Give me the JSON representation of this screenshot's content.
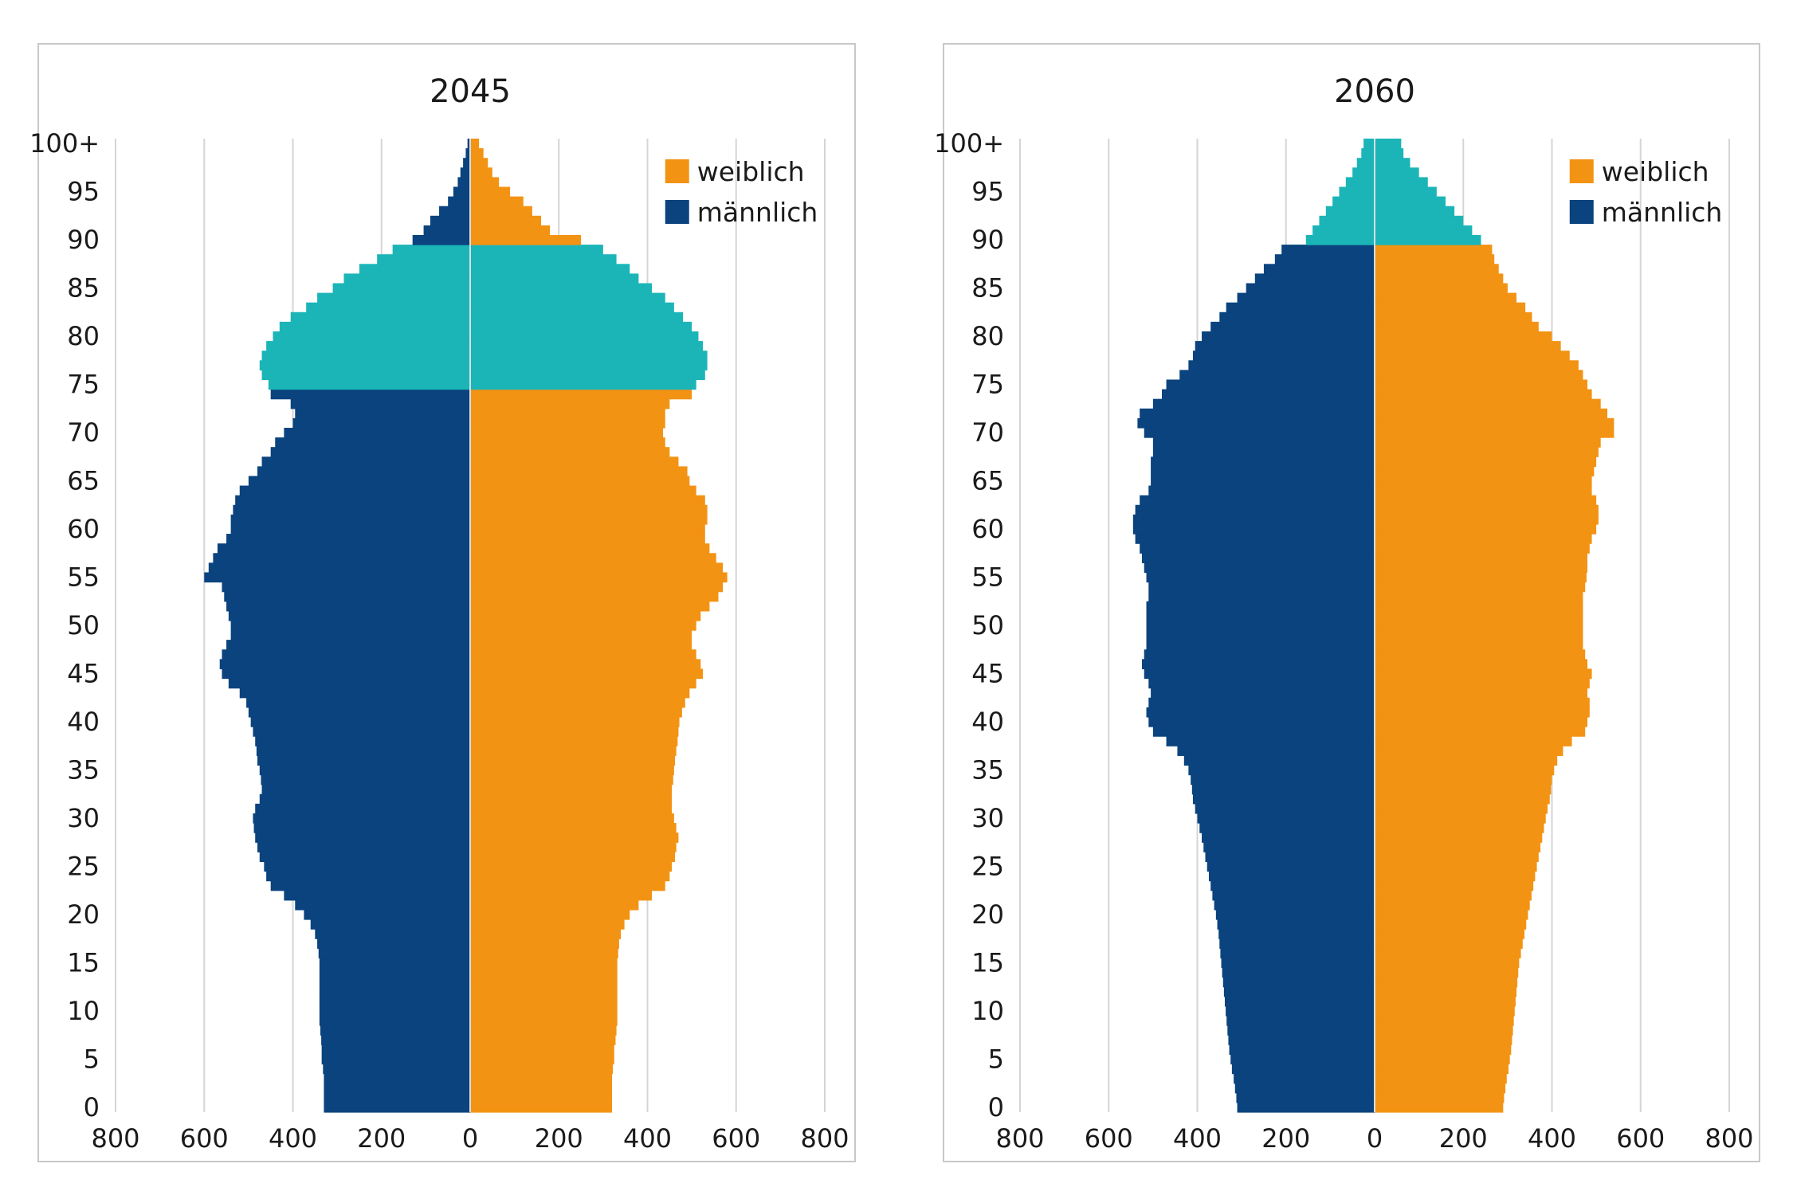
{
  "colors": {
    "weiblich": "#F39313",
    "maennlich": "#0A437E",
    "hochbetagt": "#1BB5B8",
    "grid": "#D5D5D5",
    "frame": "#C8C8C8"
  },
  "chart_data": [
    {
      "type": "bar",
      "orientation": "horizontal",
      "title": "2045",
      "xlim": [
        -800,
        800
      ],
      "x_ticks": [
        "800",
        "600",
        "400",
        "200",
        "0",
        "200",
        "400",
        "600",
        "800"
      ],
      "y_ticks": [
        "0",
        "5",
        "10",
        "15",
        "20",
        "25",
        "30",
        "35",
        "40",
        "45",
        "50",
        "55",
        "60",
        "65",
        "70",
        "75",
        "80",
        "85",
        "90",
        "95",
        "100+"
      ],
      "grid": true,
      "legend": {
        "position": "top-right",
        "labels": [
          "weiblich",
          "männlich"
        ]
      },
      "categories": [
        "0",
        "1",
        "2",
        "3",
        "4",
        "5",
        "6",
        "7",
        "8",
        "9",
        "10",
        "11",
        "12",
        "13",
        "14",
        "15",
        "16",
        "17",
        "18",
        "19",
        "20",
        "21",
        "22",
        "23",
        "24",
        "25",
        "26",
        "27",
        "28",
        "29",
        "30",
        "31",
        "32",
        "33",
        "34",
        "35",
        "36",
        "37",
        "38",
        "39",
        "40",
        "41",
        "42",
        "43",
        "44",
        "45",
        "46",
        "47",
        "48",
        "49",
        "50",
        "51",
        "52",
        "53",
        "54",
        "55",
        "56",
        "57",
        "58",
        "59",
        "60",
        "61",
        "62",
        "63",
        "64",
        "65",
        "66",
        "67",
        "68",
        "69",
        "70",
        "71",
        "72",
        "73",
        "74",
        "75",
        "76",
        "77",
        "78",
        "79",
        "80",
        "81",
        "82",
        "83",
        "84",
        "85",
        "86",
        "87",
        "88",
        "89",
        "90",
        "91",
        "92",
        "93",
        "94",
        "95",
        "96",
        "97",
        "98",
        "99",
        "100+"
      ],
      "highlight_from_age": 75,
      "highlight_to_age": 89,
      "series": [
        {
          "name": "männlich",
          "values": [
            330,
            330,
            330,
            330,
            332,
            335,
            335,
            336,
            338,
            340,
            340,
            340,
            340,
            340,
            340,
            340,
            342,
            345,
            350,
            360,
            375,
            395,
            420,
            450,
            460,
            465,
            475,
            480,
            485,
            488,
            490,
            485,
            475,
            470,
            472,
            475,
            480,
            482,
            485,
            490,
            495,
            500,
            505,
            520,
            545,
            560,
            565,
            560,
            550,
            540,
            540,
            545,
            550,
            555,
            560,
            600,
            590,
            580,
            570,
            550,
            540,
            540,
            535,
            530,
            520,
            500,
            480,
            470,
            450,
            440,
            420,
            400,
            395,
            405,
            450,
            455,
            470,
            475,
            470,
            460,
            445,
            430,
            405,
            370,
            345,
            310,
            285,
            250,
            210,
            175,
            130,
            105,
            90,
            70,
            50,
            38,
            28,
            22,
            16,
            10,
            6
          ]
        },
        {
          "name": "weiblich",
          "values": [
            320,
            320,
            320,
            320,
            322,
            325,
            325,
            328,
            330,
            332,
            332,
            332,
            332,
            332,
            332,
            332,
            334,
            336,
            340,
            348,
            360,
            380,
            410,
            440,
            450,
            455,
            462,
            465,
            470,
            465,
            460,
            455,
            455,
            455,
            458,
            460,
            462,
            465,
            468,
            470,
            472,
            478,
            485,
            495,
            510,
            525,
            520,
            510,
            500,
            500,
            510,
            520,
            540,
            560,
            570,
            580,
            570,
            555,
            540,
            530,
            530,
            535,
            535,
            530,
            510,
            495,
            490,
            470,
            450,
            440,
            435,
            440,
            440,
            450,
            500,
            510,
            530,
            535,
            535,
            525,
            515,
            500,
            480,
            460,
            440,
            410,
            380,
            360,
            330,
            300,
            250,
            180,
            160,
            140,
            120,
            90,
            65,
            50,
            40,
            30,
            20
          ]
        }
      ]
    },
    {
      "type": "bar",
      "orientation": "horizontal",
      "title": "2060",
      "xlim": [
        -800,
        800
      ],
      "x_ticks": [
        "800",
        "600",
        "400",
        "200",
        "0",
        "200",
        "400",
        "600",
        "800"
      ],
      "y_ticks": [
        "0",
        "5",
        "10",
        "15",
        "20",
        "25",
        "30",
        "35",
        "40",
        "45",
        "50",
        "55",
        "60",
        "65",
        "70",
        "75",
        "80",
        "85",
        "90",
        "95",
        "100+"
      ],
      "grid": true,
      "legend": {
        "position": "top-right",
        "labels": [
          "weiblich",
          "männlich"
        ]
      },
      "categories": [
        "0",
        "1",
        "2",
        "3",
        "4",
        "5",
        "6",
        "7",
        "8",
        "9",
        "10",
        "11",
        "12",
        "13",
        "14",
        "15",
        "16",
        "17",
        "18",
        "19",
        "20",
        "21",
        "22",
        "23",
        "24",
        "25",
        "26",
        "27",
        "28",
        "29",
        "30",
        "31",
        "32",
        "33",
        "34",
        "35",
        "36",
        "37",
        "38",
        "39",
        "40",
        "41",
        "42",
        "43",
        "44",
        "45",
        "46",
        "47",
        "48",
        "49",
        "50",
        "51",
        "52",
        "53",
        "54",
        "55",
        "56",
        "57",
        "58",
        "59",
        "60",
        "61",
        "62",
        "63",
        "64",
        "65",
        "66",
        "67",
        "68",
        "69",
        "70",
        "71",
        "72",
        "73",
        "74",
        "75",
        "76",
        "77",
        "78",
        "79",
        "80",
        "81",
        "82",
        "83",
        "84",
        "85",
        "86",
        "87",
        "88",
        "89",
        "90",
        "91",
        "92",
        "93",
        "94",
        "95",
        "96",
        "97",
        "98",
        "99",
        "100+"
      ],
      "highlight_from_age": 90,
      "highlight_to_age": 100,
      "series": [
        {
          "name": "männlich",
          "values": [
            310,
            312,
            315,
            318,
            322,
            325,
            328,
            330,
            332,
            334,
            336,
            338,
            340,
            342,
            344,
            346,
            348,
            350,
            352,
            355,
            358,
            362,
            366,
            370,
            374,
            378,
            382,
            386,
            390,
            395,
            400,
            405,
            410,
            412,
            415,
            420,
            430,
            445,
            470,
            500,
            510,
            515,
            510,
            505,
            510,
            520,
            525,
            520,
            515,
            515,
            515,
            515,
            515,
            510,
            510,
            515,
            520,
            525,
            530,
            540,
            545,
            545,
            540,
            530,
            510,
            505,
            505,
            505,
            500,
            500,
            520,
            535,
            530,
            500,
            480,
            470,
            440,
            420,
            410,
            405,
            390,
            370,
            350,
            335,
            310,
            290,
            270,
            250,
            225,
            210,
            155,
            140,
            125,
            110,
            95,
            80,
            65,
            50,
            40,
            30,
            25
          ]
        },
        {
          "name": "weiblich",
          "values": [
            290,
            292,
            295,
            298,
            302,
            305,
            308,
            310,
            312,
            314,
            316,
            318,
            320,
            322,
            324,
            326,
            330,
            334,
            338,
            342,
            346,
            350,
            354,
            358,
            362,
            366,
            370,
            374,
            378,
            382,
            386,
            390,
            395,
            398,
            400,
            405,
            412,
            425,
            445,
            475,
            480,
            485,
            485,
            480,
            485,
            490,
            480,
            475,
            470,
            470,
            470,
            470,
            470,
            470,
            475,
            478,
            480,
            480,
            485,
            490,
            500,
            505,
            505,
            500,
            490,
            490,
            495,
            500,
            505,
            510,
            540,
            540,
            525,
            510,
            490,
            480,
            470,
            460,
            440,
            420,
            400,
            370,
            355,
            340,
            320,
            300,
            290,
            280,
            270,
            265,
            240,
            220,
            200,
            180,
            160,
            140,
            120,
            100,
            80,
            65,
            60
          ]
        }
      ]
    }
  ]
}
